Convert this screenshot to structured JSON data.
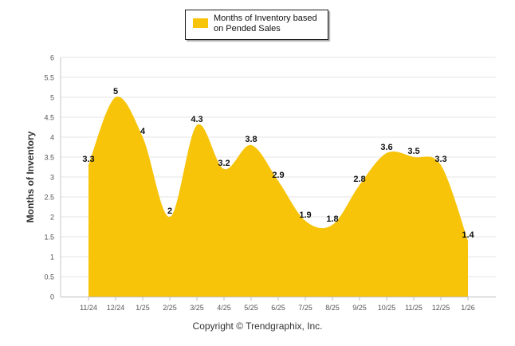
{
  "chart_data": {
    "type": "area",
    "categories": [
      "11/24",
      "12/24",
      "1/25",
      "2/25",
      "3/25",
      "4/25",
      "5/25",
      "6/25",
      "7/25",
      "8/25",
      "9/25",
      "10/25",
      "11/25",
      "12/25",
      "1/26"
    ],
    "series": [
      {
        "name": "Months of Inventory based on Pended Sales",
        "values": [
          3.3,
          5,
          4,
          2,
          4.3,
          3.2,
          3.8,
          2.9,
          1.9,
          1.8,
          2.8,
          3.6,
          3.5,
          3.3,
          1.4
        ],
        "color": "#f7c409"
      }
    ],
    "data_labels": [
      "3.3",
      "5",
      "4",
      "2",
      "4.3",
      "3.2",
      "3.8",
      "2.9",
      "1.9",
      "1.8",
      "2.8",
      "3.6",
      "3.5",
      "3.3",
      "1.4"
    ],
    "ylabel": "Months of Inventory",
    "xlabel": "",
    "ylim": [
      0,
      6
    ],
    "yticks": [
      "0",
      "0.5",
      "1",
      "1.5",
      "2",
      "2.5",
      "3",
      "3.5",
      "4",
      "4.5",
      "5",
      "5.5",
      "6"
    ],
    "grid": true,
    "legend_position": "top-center"
  },
  "legend": {
    "label": "Months of Inventory based on Pended Sales",
    "color": "#f7c409"
  },
  "footer": {
    "copyright": "Copyright © Trendgraphix, Inc."
  }
}
